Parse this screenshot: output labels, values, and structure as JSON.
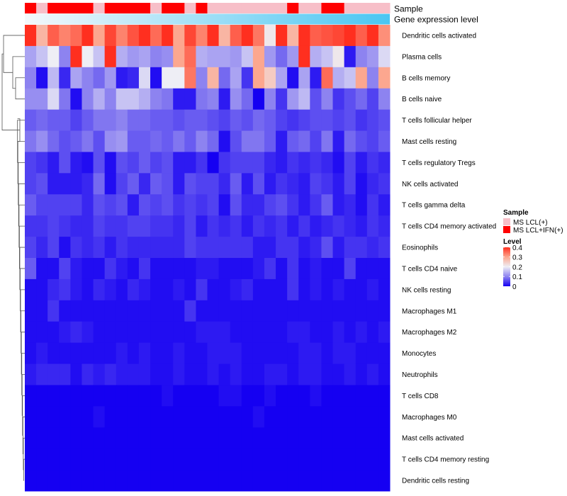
{
  "chart_data": {
    "type": "heatmap",
    "title": "",
    "annotation_tracks": [
      {
        "label": "Sample",
        "kind": "categorical"
      },
      {
        "label": "Gene expression level",
        "kind": "gradient"
      }
    ],
    "sample_groups": [
      "MS LCL(+)",
      "MS LCL+IFN(+)"
    ],
    "sample_group_colors": [
      "#F7BFC8",
      "#FF0000"
    ],
    "sample_annotation": [
      1,
      0,
      1,
      1,
      1,
      1,
      0,
      1,
      1,
      1,
      1,
      0,
      1,
      1,
      0,
      1,
      0,
      0,
      0,
      0,
      0,
      0,
      0,
      1,
      0,
      0,
      1,
      1,
      0,
      0,
      0,
      0
    ],
    "expression_gradient_colors": [
      "#F4F8FB",
      "#4AC6F2"
    ],
    "row_labels": [
      "Dendritic cells activated",
      "Plasma cells",
      "B cells memory",
      "B cells naive",
      "T cells follicular helper",
      "Mast cells resting",
      "T cells regulatory  Tregs",
      "NK cells activated",
      "T cells gamma delta",
      "T cells CD4 memory activated",
      "Eosinophils",
      "T cells CD4 naive",
      "NK cells resting",
      "Macrophages M1",
      "Macrophages M2",
      "Monocytes",
      "Neutrophils",
      "T cells CD8",
      "Macrophages M0",
      "Mast cells activated",
      "T cells CD4 memory resting",
      "Dendritic cells resting"
    ],
    "values": [
      [
        0.4,
        0.28,
        0.36,
        0.33,
        0.35,
        0.4,
        0.3,
        0.38,
        0.33,
        0.37,
        0.4,
        0.35,
        0.4,
        0.3,
        0.38,
        0.33,
        0.4,
        0.28,
        0.36,
        0.4,
        0.34,
        0.21,
        0.4,
        0.28,
        0.4,
        0.36,
        0.37,
        0.38,
        0.4,
        0.36,
        0.4,
        0.32
      ],
      [
        0.13,
        0.16,
        0.2,
        0.1,
        0.4,
        0.2,
        0.16,
        0.4,
        0.14,
        0.12,
        0.13,
        0.1,
        0.11,
        0.3,
        0.35,
        0.14,
        0.13,
        0.13,
        0.12,
        0.16,
        0.3,
        0.12,
        0.08,
        0.12,
        0.4,
        0.14,
        0.16,
        0.21,
        0.02,
        0.1,
        0.12,
        0.18
      ],
      [
        0.1,
        0.01,
        0.15,
        0.03,
        0.13,
        0.1,
        0.08,
        0.12,
        0.02,
        0.03,
        0.18,
        0.01,
        0.2,
        0.2,
        0.34,
        0.1,
        0.28,
        0.08,
        0.13,
        0.04,
        0.3,
        0.25,
        0.13,
        0.01,
        0.13,
        0.02,
        0.35,
        0.14,
        0.16,
        0.3,
        0.1,
        0.3
      ],
      [
        0.11,
        0.11,
        0.18,
        0.09,
        0.01,
        0.1,
        0.14,
        0.1,
        0.16,
        0.16,
        0.14,
        0.1,
        0.09,
        0.02,
        0.02,
        0.09,
        0.1,
        0.02,
        0.11,
        0.08,
        0.0,
        0.1,
        0.04,
        0.12,
        0.15,
        0.06,
        0.1,
        0.04,
        0.06,
        0.08,
        0.05,
        0.1
      ],
      [
        0.07,
        0.08,
        0.07,
        0.07,
        0.05,
        0.07,
        0.09,
        0.09,
        0.1,
        0.08,
        0.08,
        0.07,
        0.07,
        0.06,
        0.07,
        0.07,
        0.06,
        0.05,
        0.07,
        0.06,
        0.08,
        0.07,
        0.05,
        0.04,
        0.05,
        0.06,
        0.06,
        0.05,
        0.06,
        0.04,
        0.05,
        0.06
      ],
      [
        0.09,
        0.11,
        0.08,
        0.06,
        0.07,
        0.09,
        0.06,
        0.11,
        0.12,
        0.07,
        0.07,
        0.08,
        0.07,
        0.09,
        0.07,
        0.1,
        0.08,
        0.01,
        0.06,
        0.09,
        0.09,
        0.07,
        0.02,
        0.07,
        0.08,
        0.05,
        0.09,
        0.02,
        0.08,
        0.06,
        0.05,
        0.07
      ],
      [
        0.05,
        0.04,
        0.02,
        0.06,
        0.02,
        0.01,
        0.06,
        0.01,
        0.06,
        0.05,
        0.07,
        0.05,
        0.06,
        0.02,
        0.02,
        0.04,
        0.0,
        0.04,
        0.05,
        0.05,
        0.05,
        0.03,
        0.02,
        0.04,
        0.03,
        0.04,
        0.03,
        0.01,
        0.05,
        0.02,
        0.04,
        0.03
      ],
      [
        0.05,
        0.06,
        0.02,
        0.02,
        0.02,
        0.03,
        0.08,
        0.01,
        0.05,
        0.07,
        0.03,
        0.07,
        0.06,
        0.02,
        0.06,
        0.05,
        0.05,
        0.03,
        0.07,
        0.02,
        0.06,
        0.02,
        0.04,
        0.03,
        0.02,
        0.05,
        0.04,
        0.02,
        0.05,
        0.01,
        0.03,
        0.04
      ],
      [
        0.07,
        0.05,
        0.05,
        0.05,
        0.05,
        0.03,
        0.06,
        0.05,
        0.06,
        0.02,
        0.06,
        0.05,
        0.06,
        0.04,
        0.05,
        0.04,
        0.05,
        0.01,
        0.06,
        0.03,
        0.03,
        0.05,
        0.06,
        0.04,
        0.02,
        0.04,
        0.07,
        0.02,
        0.03,
        0.01,
        0.04,
        0.02
      ],
      [
        0.04,
        0.04,
        0.05,
        0.04,
        0.03,
        0.03,
        0.05,
        0.04,
        0.04,
        0.05,
        0.05,
        0.04,
        0.04,
        0.03,
        0.05,
        0.02,
        0.04,
        0.03,
        0.04,
        0.02,
        0.04,
        0.03,
        0.04,
        0.02,
        0.04,
        0.02,
        0.03,
        0.04,
        0.03,
        0.02,
        0.04,
        0.03
      ],
      [
        0.05,
        0.03,
        0.05,
        0.01,
        0.04,
        0.03,
        0.04,
        0.02,
        0.04,
        0.03,
        0.03,
        0.03,
        0.03,
        0.03,
        0.05,
        0.04,
        0.04,
        0.04,
        0.04,
        0.04,
        0.02,
        0.02,
        0.04,
        0.04,
        0.02,
        0.03,
        0.06,
        0.02,
        0.04,
        0.04,
        0.03,
        0.04
      ],
      [
        0.07,
        0.01,
        0.01,
        0.05,
        0.02,
        0.01,
        0.01,
        0.04,
        0.02,
        0.01,
        0.04,
        0.01,
        0.01,
        0.01,
        0.01,
        0.02,
        0.02,
        0.01,
        0.01,
        0.01,
        0.02,
        0.04,
        0.01,
        0.04,
        0.01,
        0.02,
        0.01,
        0.01,
        0.05,
        0.01,
        0.01,
        0.01
      ],
      [
        0.01,
        0.01,
        0.03,
        0.04,
        0.02,
        0.01,
        0.03,
        0.02,
        0.01,
        0.03,
        0.02,
        0.01,
        0.01,
        0.02,
        0.01,
        0.04,
        0.01,
        0.01,
        0.02,
        0.03,
        0.01,
        0.01,
        0.01,
        0.04,
        0.01,
        0.02,
        0.01,
        0.02,
        0.01,
        0.01,
        0.02,
        0.01
      ],
      [
        0.01,
        0.01,
        0.04,
        0.01,
        0.01,
        0.01,
        0.01,
        0.01,
        0.01,
        0.01,
        0.01,
        0.01,
        0.01,
        0.01,
        0.04,
        0.01,
        0.01,
        0.01,
        0.01,
        0.01,
        0.01,
        0.01,
        0.01,
        0.01,
        0.01,
        0.01,
        0.01,
        0.01,
        0.01,
        0.01,
        0.01,
        0.01
      ],
      [
        0.01,
        0.01,
        0.01,
        0.02,
        0.03,
        0.02,
        0.01,
        0.01,
        0.01,
        0.01,
        0.01,
        0.01,
        0.01,
        0.01,
        0.01,
        0.02,
        0.02,
        0.02,
        0.01,
        0.01,
        0.01,
        0.01,
        0.01,
        0.02,
        0.02,
        0.01,
        0.01,
        0.02,
        0.01,
        0.02,
        0.01,
        0.02
      ],
      [
        0.01,
        0.02,
        0.01,
        0.01,
        0.01,
        0.01,
        0.01,
        0.01,
        0.02,
        0.01,
        0.02,
        0.01,
        0.01,
        0.02,
        0.01,
        0.01,
        0.02,
        0.02,
        0.02,
        0.01,
        0.01,
        0.01,
        0.01,
        0.01,
        0.02,
        0.02,
        0.01,
        0.02,
        0.02,
        0.01,
        0.01,
        0.01
      ],
      [
        0.02,
        0.03,
        0.03,
        0.03,
        0.01,
        0.03,
        0.02,
        0.03,
        0.02,
        0.02,
        0.02,
        0.01,
        0.01,
        0.02,
        0.01,
        0.01,
        0.02,
        0.01,
        0.02,
        0.01,
        0.01,
        0.02,
        0.02,
        0.01,
        0.02,
        0.02,
        0.01,
        0.01,
        0.02,
        0.01,
        0.02,
        0.01
      ],
      [
        0.0,
        0.0,
        0.0,
        0.0,
        0.0,
        0.0,
        0.0,
        0.0,
        0.0,
        0.0,
        0.0,
        0.0,
        0.01,
        0.0,
        0.0,
        0.0,
        0.0,
        0.01,
        0.01,
        0.0,
        0.0,
        0.01,
        0.0,
        0.0,
        0.0,
        0.01,
        0.0,
        0.0,
        0.0,
        0.0,
        0.0,
        0.0
      ],
      [
        0.0,
        0.0,
        0.0,
        0.0,
        0.0,
        0.0,
        0.01,
        0.0,
        0.0,
        0.0,
        0.0,
        0.0,
        0.0,
        0.0,
        0.0,
        0.0,
        0.0,
        0.0,
        0.0,
        0.0,
        0.01,
        0.0,
        0.0,
        0.0,
        0.0,
        0.0,
        0.0,
        0.0,
        0.0,
        0.0,
        0.0,
        0.0
      ],
      [
        0.0,
        0.0,
        0.0,
        0.0,
        0.0,
        0.0,
        0.0,
        0.0,
        0.0,
        0.0,
        0.0,
        0.0,
        0.0,
        0.0,
        0.0,
        0.0,
        0.0,
        0.0,
        0.0,
        0.0,
        0.0,
        0.0,
        0.0,
        0.0,
        0.0,
        0.0,
        0.0,
        0.0,
        0.0,
        0.0,
        0.0,
        0.0
      ],
      [
        0.0,
        0.0,
        0.0,
        0.0,
        0.0,
        0.0,
        0.0,
        0.0,
        0.0,
        0.0,
        0.0,
        0.0,
        0.0,
        0.0,
        0.0,
        0.0,
        0.0,
        0.0,
        0.0,
        0.0,
        0.0,
        0.0,
        0.0,
        0.0,
        0.0,
        0.0,
        0.0,
        0.0,
        0.0,
        0.0,
        0.0,
        0.0
      ],
      [
        0.0,
        0.0,
        0.0,
        0.0,
        0.0,
        0.0,
        0.0,
        0.0,
        0.0,
        0.0,
        0.0,
        0.0,
        0.0,
        0.0,
        0.0,
        0.0,
        0.0,
        0.0,
        0.0,
        0.0,
        0.0,
        0.0,
        0.0,
        0.0,
        0.0,
        0.0,
        0.0,
        0.0,
        0.0,
        0.0,
        0.0,
        0.0
      ]
    ],
    "color_scale": {
      "stops": [
        0,
        0.1,
        0.2,
        0.3,
        0.4
      ],
      "colors": [
        "#1500F2",
        "#8D83F0",
        "#EEEEF5",
        "#FCA78F",
        "#FF2F1F"
      ],
      "range": [
        0,
        0.4
      ]
    },
    "row_dendrogram": true
  },
  "legend": {
    "sample_title": "Sample",
    "sample_items": [
      "MS LCL(+)",
      "MS LCL+IFN(+)"
    ],
    "level_title": "Level",
    "level_ticks": [
      "0.4",
      "0.3",
      "0.2",
      "0.1",
      "0"
    ]
  }
}
